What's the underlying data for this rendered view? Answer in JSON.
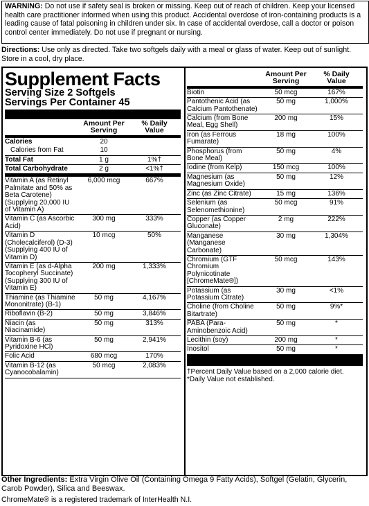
{
  "warning": {
    "label": "WARNING:",
    "text": "Do not use if safety seal is broken or missing. Keep out of reach of children. Keep your licensed health care practitioner informed when using this product. Accidental overdose of iron-containing products is a leading cause of fatal poisoning in children under six. In case of accidental overdose, call a doctor or poison control center immediately. Do not use if pregnant or nursing."
  },
  "directions": {
    "label": "Directions:",
    "text": "Use only as directed. Take two softgels daily with a meal or glass of water. Keep out of sunlight. Store in a cool, dry place."
  },
  "supplement_facts": {
    "title": "Supplement Facts",
    "serving_size": "Serving Size 2 Softgels",
    "servings_per_container": "Servings Per Container 45",
    "headers": {
      "amount": "Amount Per Serving",
      "daily_value": "% Daily Value"
    },
    "calories": {
      "name": "Calories",
      "amount": "20"
    },
    "calories_from_fat": {
      "name": "Calories from Fat",
      "amount": "10"
    },
    "total_fat": {
      "name": "Total Fat",
      "amount": "1 g",
      "daily_value": "1%†"
    },
    "total_carbohydrate": {
      "name": "Total Carbohydrate",
      "amount": "2 g",
      "daily_value": "<1%†"
    },
    "rows_left": [
      {
        "name": "Vitamin A (as Retinyl Palmitate and 50% as Beta Carotene) (Supplying 20,000 IU of Vitamin A)",
        "amount": "6,000 mcg",
        "daily_value": "667%"
      },
      {
        "name": "Vitamin C (as Ascorbic Acid)",
        "amount": "300 mg",
        "daily_value": "333%"
      },
      {
        "name": "Vitamin D (Cholecalciferol) (D-3) (Supplying 400 IU of Vitamin D)",
        "amount": "10 mcg",
        "daily_value": "50%"
      },
      {
        "name": "Vitamin E (as d-Alpha Tocopheryl Succinate) (Supplying 300 IU of Vitamin E)",
        "amount": "200 mg",
        "daily_value": "1,333%"
      },
      {
        "name": "Thiamine (as Thiamine Mononitrate) (B-1)",
        "amount": "50 mg",
        "daily_value": "4,167%"
      },
      {
        "name": "Riboflavin (B-2)",
        "amount": "50 mg",
        "daily_value": "3,846%"
      },
      {
        "name": "Niacin (as Niacinamide)",
        "amount": "50 mg",
        "daily_value": "313%"
      },
      {
        "name": "Vitamin B-6 (as Pyridoxine HCl)",
        "amount": "50 mg",
        "daily_value": "2,941%"
      },
      {
        "name": "Folic Acid",
        "amount": "680 mcg",
        "daily_value": "170%"
      },
      {
        "name": "Vitamin B-12 (as Cyanocobalamin)",
        "amount": "50 mcg",
        "daily_value": "2,083%"
      }
    ],
    "rows_right": [
      {
        "name": "Biotin",
        "amount": "50 mcg",
        "daily_value": "167%"
      },
      {
        "name": "Pantothenic Acid (as Calcium Pantothenate)",
        "amount": "50 mg",
        "daily_value": "1,000%"
      },
      {
        "name": "Calcium (from Bone Meal, Egg Shell)",
        "amount": "200 mg",
        "daily_value": "15%"
      },
      {
        "name": "Iron (as Ferrous Fumarate)",
        "amount": "18 mg",
        "daily_value": "100%"
      },
      {
        "name": "Phosphorus (from Bone Meal)",
        "amount": "50 mg",
        "daily_value": "4%"
      },
      {
        "name": "Iodine (from Kelp)",
        "amount": "150 mcg",
        "daily_value": "100%"
      },
      {
        "name": "Magnesium (as Magnesium Oxide)",
        "amount": "50 mg",
        "daily_value": "12%"
      },
      {
        "name": "Zinc (as Zinc Citrate)",
        "amount": "15 mg",
        "daily_value": "136%"
      },
      {
        "name": "Selenium (as Selenomethionine)",
        "amount": "50 mcg",
        "daily_value": "91%"
      },
      {
        "name": "Copper (as Copper Gluconate)",
        "amount": "2 mg",
        "daily_value": "222%"
      },
      {
        "name": "Manganese (Manganese Carbonate)",
        "amount": "30 mg",
        "daily_value": "1,304%"
      },
      {
        "name": "Chromium (GTF Chromium Polynicotinate [ChromeMate®])",
        "amount": "50 mcg",
        "daily_value": "143%"
      },
      {
        "name": "Potassium (as Potassium Citrate)",
        "amount": "30 mg",
        "daily_value": "<1%"
      },
      {
        "name": "Choline (from Choline Bitartrate)",
        "amount": "50 mg",
        "daily_value": "9%*"
      },
      {
        "name": "PABA (Para-Aminobenzoic Acid)",
        "amount": "50 mg",
        "daily_value": "*"
      },
      {
        "name": "Lecithin (soy)",
        "amount": "200 mg",
        "daily_value": "*"
      },
      {
        "name": "Inositol",
        "amount": "50 mg",
        "daily_value": "*"
      }
    ],
    "footnotes": [
      "†Percent Daily Value based on a 2,000 calorie diet.",
      "*Daily Value not established."
    ]
  },
  "other_ingredients": {
    "label": "Other Ingredients:",
    "text": "Extra Virgin Olive Oil (Containing Omega 9 Fatty Acids), Softgel (Gelatin, Glycerin, Carob Powder), Silica and Beeswax."
  },
  "trademark": "ChromeMate® is a registered trademark of InterHealth N.I."
}
